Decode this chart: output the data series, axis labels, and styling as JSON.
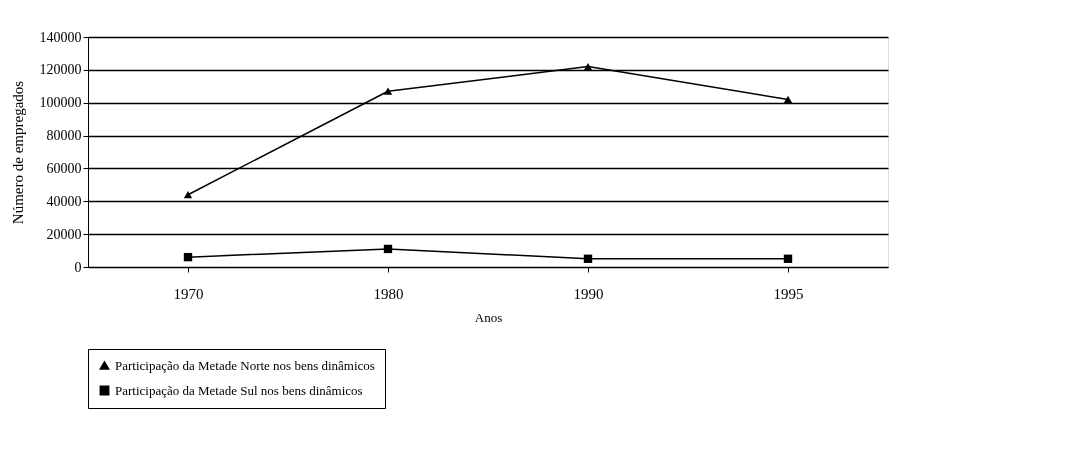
{
  "chart_data": {
    "type": "line",
    "xlabel": "Anos",
    "ylabel": "Número de empregados",
    "categories": [
      "1970",
      "1980",
      "1990",
      "1995"
    ],
    "series": [
      {
        "name": "Participação da Metade Norte nos bens dinâmicos",
        "color": "#000000",
        "marker": "triangle",
        "values": [
          44000,
          107000,
          122000,
          102000
        ]
      },
      {
        "name": "Participação da Metade Sul nos bens dinâmicos",
        "color": "#000000",
        "marker": "square",
        "values": [
          6000,
          11000,
          5000,
          5000
        ]
      }
    ],
    "ylim": [
      0,
      140000
    ],
    "yticks": [
      0,
      20000,
      40000,
      60000,
      80000,
      100000,
      120000,
      140000
    ],
    "grid": "y",
    "legend": "bottom",
    "line_style": "solid"
  }
}
